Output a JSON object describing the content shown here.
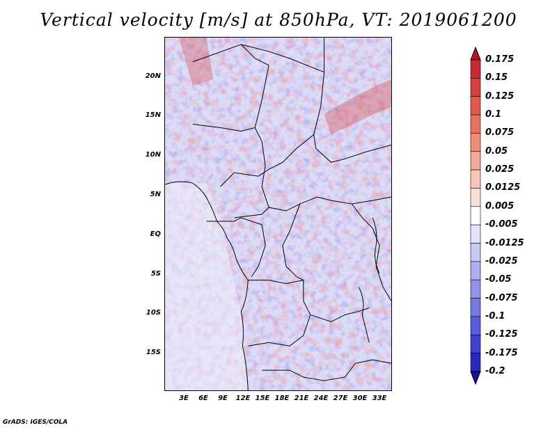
{
  "title": "Vertical velocity [m/s] at 850hPa, VT: 2019061200",
  "footer": "GrADS: IGES/COLA",
  "map": {
    "lon_range": [
      0,
      35
    ],
    "lat_range": [
      -20,
      25
    ],
    "lat_ticks": [
      "20N",
      "15N",
      "10N",
      "5N",
      "EQ",
      "5S",
      "10S",
      "15S"
    ],
    "lon_ticks": [
      "3E",
      "6E",
      "9E",
      "12E",
      "15E",
      "18E",
      "21E",
      "24E",
      "27E",
      "30E",
      "33E"
    ]
  },
  "colorbar": {
    "labels": [
      "0.175",
      "0.15",
      "0.125",
      "0.1",
      "0.075",
      "0.05",
      "0.025",
      "0.0125",
      "0.005",
      "-0.005",
      "-0.0125",
      "-0.025",
      "-0.05",
      "-0.075",
      "-0.1",
      "-0.125",
      "-0.175",
      "-0.2"
    ],
    "colors": [
      "#b2182b",
      "#c62a34",
      "#d6403f",
      "#e0584f",
      "#e87262",
      "#ef8c7a",
      "#f4a897",
      "#f8c5b8",
      "#fbe0d8",
      "#ffffff",
      "#e3e3fb",
      "#c9c9f6",
      "#aeaef0",
      "#9393ea",
      "#7878e2",
      "#5c5cd8",
      "#4040cc",
      "#2727b8",
      "#15159a"
    ]
  }
}
